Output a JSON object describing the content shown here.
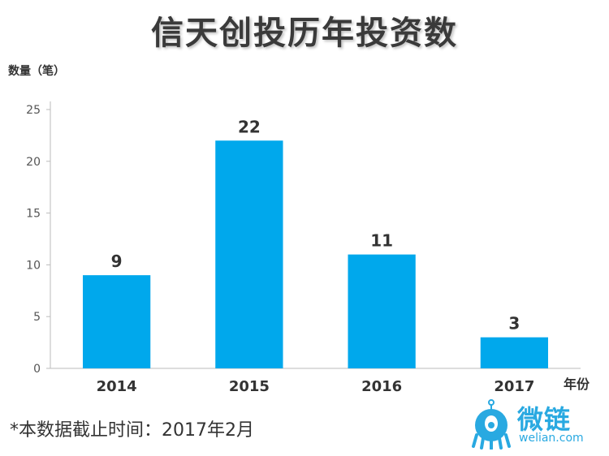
{
  "title": "信天创投历年投资数",
  "footnote": "*本数据截止时间：2017年2月",
  "logo": {
    "name": "微链",
    "url": "welian.com"
  },
  "colors": {
    "bar": "#00a8ec",
    "logo": "#29a9e1"
  },
  "chart_data": {
    "type": "bar",
    "categories": [
      "2014",
      "2015",
      "2016",
      "2017"
    ],
    "values": [
      9,
      22,
      11,
      3
    ],
    "data_labels": [
      "9",
      "22",
      "11",
      "3"
    ],
    "ylabel": "数量（笔）",
    "xlabel": "年份",
    "ylim": [
      0,
      25
    ],
    "yticks": [
      0,
      5,
      10,
      15,
      20,
      25
    ],
    "grid": false
  }
}
